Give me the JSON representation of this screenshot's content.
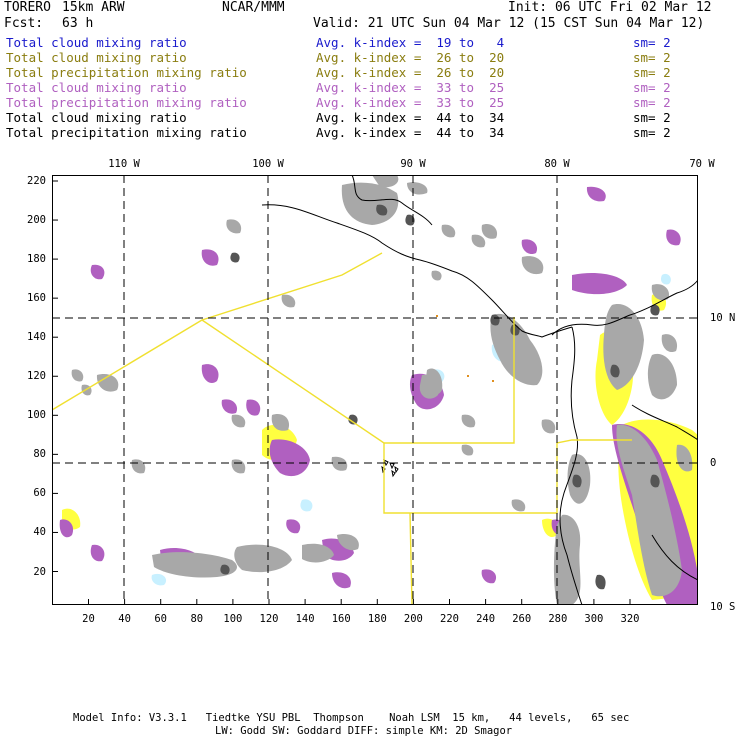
{
  "header": {
    "model": "TORERO",
    "resolution": "15km ARW",
    "org": "NCAR/MMM",
    "init": "Init: 06 UTC Fri 02 Mar 12",
    "fcst_label": "Fcst:",
    "fcst_hours": "63 h",
    "valid": "Valid: 21 UTC Sun 04 Mar 12 (15 CST Sun 04 Mar 12)"
  },
  "legend": [
    {
      "field": "Total cloud mixing ratio",
      "index": "Avg. k-index =  19 to   4",
      "sm": "sm= 2",
      "color": "#1a1acc"
    },
    {
      "field": "Total cloud mixing ratio",
      "index": "Avg. k-index =  26 to  20",
      "sm": "sm= 2",
      "color": "#8a7d10"
    },
    {
      "field": "Total precipitation mixing ratio",
      "index": "Avg. k-index =  26 to  20",
      "sm": "sm= 2",
      "color": "#8a7d10"
    },
    {
      "field": "Total cloud mixing ratio",
      "index": "Avg. k-index =  33 to  25",
      "sm": "sm= 2",
      "color": "#b060c0"
    },
    {
      "field": "Total precipitation mixing ratio",
      "index": "Avg. k-index =  33 to  25",
      "sm": "sm= 2",
      "color": "#b060c0"
    },
    {
      "field": "Total cloud mixing ratio",
      "index": "Avg. k-index =  44 to  34",
      "sm": "sm= 2",
      "color": "#000000"
    },
    {
      "field": "Total precipitation mixing ratio",
      "index": "Avg. k-index =  44 to  34",
      "sm": "sm= 2",
      "color": "#000000"
    }
  ],
  "axes": {
    "top_lon": [
      "110 W",
      "100 W",
      "90 W",
      "80 W",
      "70 W"
    ],
    "right_lat": [
      "10 N",
      "0",
      "10 S"
    ],
    "bottom_ticks": [
      "20",
      "40",
      "60",
      "80",
      "100",
      "120",
      "140",
      "160",
      "180",
      "200",
      "220",
      "240",
      "260",
      "280",
      "300",
      "320"
    ],
    "left_ticks": [
      "220",
      "200",
      "180",
      "160",
      "140",
      "120",
      "100",
      "80",
      "60",
      "40",
      "20"
    ]
  },
  "colors": {
    "gray": "#a8a8a8",
    "dark": "#555555",
    "purple": "#b060c0",
    "yellow": "#ffff40",
    "cyan": "#c8f0ff",
    "boundary": "#f0e030"
  },
  "footer": {
    "line1": "Model Info: V3.3.1   Tiedtke YSU PBL  Thompson    Noah LSM  15 km,   44 levels,   65 sec",
    "line2": "LW: Godd SW: Goddard DIFF: simple KM: 2D Smagor"
  }
}
